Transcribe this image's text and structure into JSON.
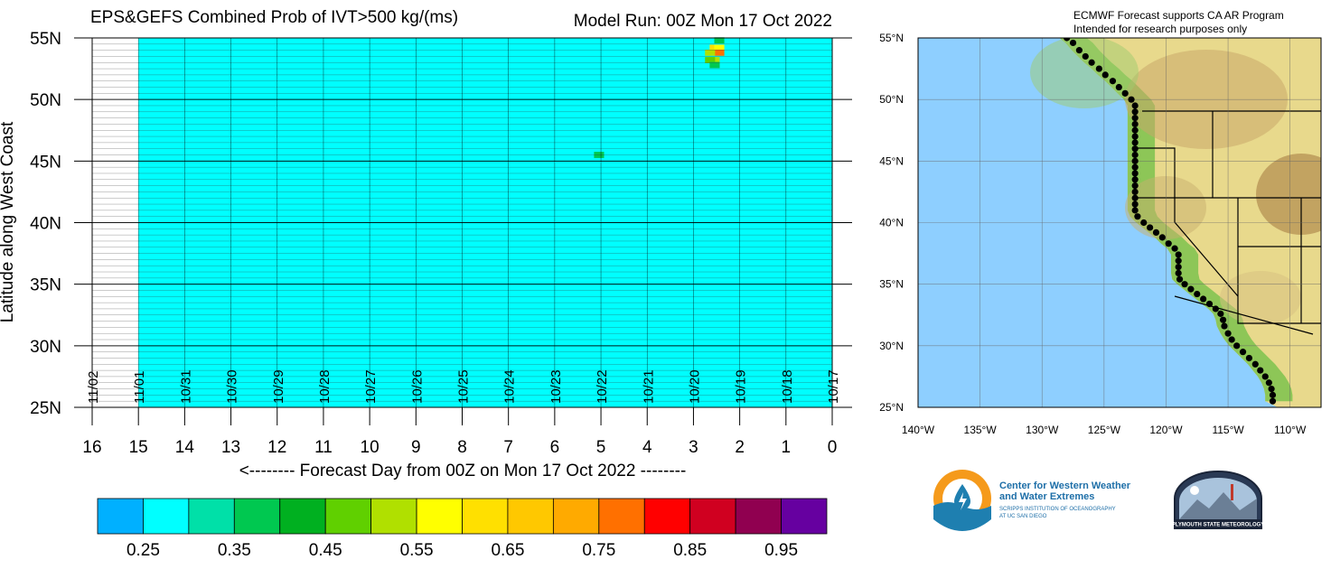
{
  "chart_data": [
    {
      "type": "heatmap",
      "title": "EPS&GEFS Combined Prob of IVT>500 kg/(ms)",
      "run_label": "Model Run: 00Z Mon 17 Oct 2022",
      "xlabel": "<-------- Forecast Day from 00Z on Mon 17 Oct 2022 --------",
      "ylabel": "Latitude along West Coast",
      "x_reversed": true,
      "xlim": [
        0,
        16
      ],
      "ylim": [
        25,
        55
      ],
      "data_xlim": [
        0,
        15
      ],
      "x_ticks": [
        "16",
        "15",
        "14",
        "13",
        "12",
        "11",
        "10",
        "9",
        "8",
        "7",
        "6",
        "5",
        "4",
        "3",
        "2",
        "1",
        "0"
      ],
      "y_ticks": [
        "25N",
        "30N",
        "35N",
        "40N",
        "45N",
        "50N",
        "55N"
      ],
      "date_labels": [
        "11/02",
        "11/01",
        "10/31",
        "10/30",
        "10/29",
        "10/28",
        "10/27",
        "10/26",
        "10/25",
        "10/24",
        "10/23",
        "10/22",
        "10/21",
        "10/20",
        "10/19",
        "10/18",
        "10/17"
      ],
      "background_value": 0.25,
      "cells": [
        {
          "day": 2.5,
          "lat": 54.8,
          "value": 0.35
        },
        {
          "day": 2.6,
          "lat": 54.2,
          "value": 0.6
        },
        {
          "day": 2.5,
          "lat": 54.2,
          "value": 0.55
        },
        {
          "day": 2.5,
          "lat": 53.8,
          "value": 0.75
        },
        {
          "day": 2.7,
          "lat": 53.8,
          "value": 0.5
        },
        {
          "day": 2.6,
          "lat": 53.2,
          "value": 0.5
        },
        {
          "day": 2.7,
          "lat": 53.2,
          "value": 0.45
        },
        {
          "day": 2.6,
          "lat": 52.8,
          "value": 0.35
        },
        {
          "day": 5.1,
          "lat": 45.5,
          "value": 0.35
        }
      ],
      "colorbar": {
        "labels": [
          "0.25",
          "0.35",
          "0.45",
          "0.55",
          "0.65",
          "0.75",
          "0.85",
          "0.95"
        ],
        "colors": [
          "#00b0ff",
          "#00ffff",
          "#00e0a8",
          "#00c850",
          "#00b020",
          "#60d000",
          "#b0e000",
          "#ffff00",
          "#ffe000",
          "#ffc800",
          "#ffaa00",
          "#ff7000",
          "#ff0000",
          "#d00020",
          "#900050",
          "#6600a0"
        ]
      },
      "ocean_color": "#00b0ff"
    },
    {
      "type": "map",
      "title": "ECMWF Forecast supports CA AR Program",
      "subtitle": "Intended for research purposes only",
      "lon_ticks": [
        "140°W",
        "135°W",
        "130°W",
        "125°W",
        "120°W",
        "115°W",
        "110°W"
      ],
      "lat_ticks": [
        "25°N",
        "30°N",
        "35°N",
        "40°N",
        "45°N",
        "50°N",
        "55°N"
      ],
      "lon_range": [
        -140,
        -107.5
      ],
      "lat_range": [
        25,
        55
      ],
      "ocean_color": "#8ecfff",
      "land_color": "#e8d98c",
      "coast_points": [
        [
          -128.0,
          55.0
        ],
        [
          -127.5,
          54.6
        ],
        [
          -127.0,
          54.0
        ],
        [
          -126.5,
          53.5
        ],
        [
          -126.0,
          53.0
        ],
        [
          -125.4,
          52.5
        ],
        [
          -124.9,
          52.0
        ],
        [
          -124.3,
          51.5
        ],
        [
          -123.8,
          51.0
        ],
        [
          -123.3,
          50.5
        ],
        [
          -122.8,
          50.0
        ],
        [
          -122.5,
          49.5
        ],
        [
          -122.5,
          49.0
        ],
        [
          -122.5,
          48.5
        ],
        [
          -122.5,
          48.0
        ],
        [
          -122.5,
          47.5
        ],
        [
          -122.5,
          47.0
        ],
        [
          -122.5,
          46.5
        ],
        [
          -122.5,
          46.0
        ],
        [
          -122.5,
          45.5
        ],
        [
          -122.5,
          45.0
        ],
        [
          -122.5,
          44.5
        ],
        [
          -122.5,
          44.0
        ],
        [
          -122.5,
          43.5
        ],
        [
          -122.5,
          43.0
        ],
        [
          -122.5,
          42.5
        ],
        [
          -122.5,
          42.0
        ],
        [
          -122.5,
          41.5
        ],
        [
          -122.5,
          41.0
        ],
        [
          -122.3,
          40.5
        ],
        [
          -121.8,
          40.0
        ],
        [
          -121.3,
          39.6
        ],
        [
          -120.8,
          39.2
        ],
        [
          -120.3,
          38.8
        ],
        [
          -119.8,
          38.3
        ],
        [
          -119.3,
          37.9
        ],
        [
          -119.0,
          37.4
        ],
        [
          -119.0,
          36.9
        ],
        [
          -119.0,
          36.4
        ],
        [
          -119.0,
          35.9
        ],
        [
          -118.9,
          35.4
        ],
        [
          -118.5,
          35.0
        ],
        [
          -118.0,
          34.6
        ],
        [
          -117.5,
          34.2
        ],
        [
          -117.0,
          33.8
        ],
        [
          -116.5,
          33.4
        ],
        [
          -116.0,
          33.0
        ],
        [
          -115.6,
          32.6
        ],
        [
          -115.4,
          32.1
        ],
        [
          -115.3,
          31.6
        ],
        [
          -115.0,
          31.0
        ],
        [
          -114.7,
          30.5
        ],
        [
          -114.3,
          30.0
        ],
        [
          -113.8,
          29.5
        ],
        [
          -113.3,
          29.0
        ],
        [
          -112.8,
          28.5
        ],
        [
          -112.4,
          28.0
        ],
        [
          -112.0,
          27.5
        ],
        [
          -111.7,
          27.0
        ],
        [
          -111.5,
          26.5
        ],
        [
          -111.4,
          26.0
        ],
        [
          -111.4,
          25.5
        ]
      ]
    }
  ],
  "footer": {
    "cw3e_line1": "Center for Western Weather",
    "cw3e_line2": "and Water Extremes",
    "cw3e_line3": "SCRIPPS INSTITUTION OF OCEANOGRAPHY",
    "cw3e_line4": "AT UC SAN DIEGO",
    "psu_text": "PLYMOUTH STATE METEOROLOGY"
  }
}
